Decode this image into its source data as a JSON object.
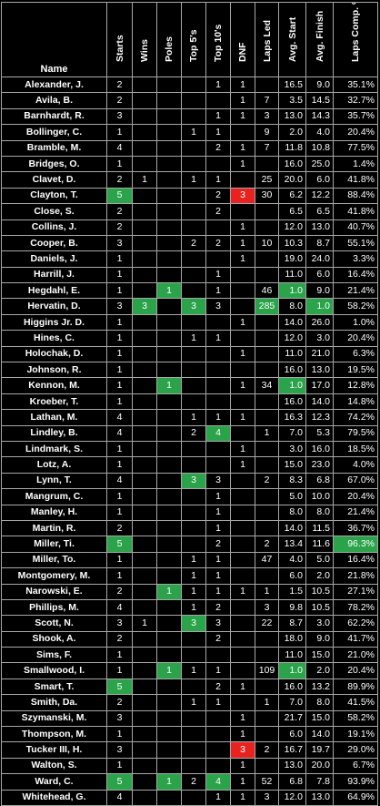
{
  "headers": [
    "Name",
    "Starts",
    "Wins",
    "Poles",
    "Top 5's",
    "Top 10's",
    "DNF",
    "Laps Led",
    "Avg. Start",
    "Avg. Finish",
    "Laps Comp. %"
  ],
  "colors": {
    "green": "#2aa34a",
    "red": "#e8231f",
    "background": "#000000",
    "border": "#a8a8a8"
  },
  "rows": [
    {
      "cells": [
        "Alexander, J.",
        "2",
        "",
        "",
        "",
        "1",
        "1",
        "",
        "16.5",
        "9.0",
        "35.1%"
      ],
      "hl": {}
    },
    {
      "cells": [
        "Avila, B.",
        "2",
        "",
        "",
        "",
        "",
        "1",
        "7",
        "3.5",
        "14.5",
        "32.7%"
      ],
      "hl": {}
    },
    {
      "cells": [
        "Barnhardt, R.",
        "3",
        "",
        "",
        "",
        "1",
        "1",
        "3",
        "13.0",
        "14.3",
        "35.7%"
      ],
      "hl": {}
    },
    {
      "cells": [
        "Bollinger, C.",
        "1",
        "",
        "",
        "1",
        "1",
        "",
        "9",
        "2.0",
        "4.0",
        "20.4%"
      ],
      "hl": {}
    },
    {
      "cells": [
        "Bramble, M.",
        "4",
        "",
        "",
        "",
        "2",
        "1",
        "7",
        "11.8",
        "10.8",
        "77.5%"
      ],
      "hl": {}
    },
    {
      "cells": [
        "Bridges, O.",
        "1",
        "",
        "",
        "",
        "",
        "1",
        "",
        "16.0",
        "25.0",
        "1.4%"
      ],
      "hl": {}
    },
    {
      "cells": [
        "Clavet, D.",
        "2",
        "1",
        "",
        "1",
        "1",
        "",
        "25",
        "20.0",
        "6.0",
        "41.8%"
      ],
      "hl": {}
    },
    {
      "cells": [
        "Clayton, T.",
        "5",
        "",
        "",
        "",
        "2",
        "3",
        "30",
        "6.2",
        "12.2",
        "88.4%"
      ],
      "hl": {
        "1": "green",
        "6": "red"
      }
    },
    {
      "cells": [
        "Close, S.",
        "2",
        "",
        "",
        "",
        "2",
        "",
        "",
        "6.5",
        "6.5",
        "41.8%"
      ],
      "hl": {}
    },
    {
      "cells": [
        "Collins, J.",
        "2",
        "",
        "",
        "",
        "",
        "1",
        "",
        "12.0",
        "13.0",
        "40.7%"
      ],
      "hl": {}
    },
    {
      "cells": [
        "Cooper, B.",
        "3",
        "",
        "",
        "2",
        "2",
        "1",
        "10",
        "10.3",
        "8.7",
        "55.1%"
      ],
      "hl": {}
    },
    {
      "cells": [
        "Daniels, J.",
        "1",
        "",
        "",
        "",
        "",
        "1",
        "",
        "19.0",
        "24.0",
        "3.3%"
      ],
      "hl": {}
    },
    {
      "cells": [
        "Harrill, J.",
        "1",
        "",
        "",
        "",
        "1",
        "",
        "",
        "11.0",
        "6.0",
        "16.4%"
      ],
      "hl": {}
    },
    {
      "cells": [
        "Hegdahl, E.",
        "1",
        "",
        "1",
        "",
        "1",
        "",
        "46",
        "1.0",
        "9.0",
        "21.4%"
      ],
      "hl": {
        "3": "green",
        "8": "green"
      }
    },
    {
      "cells": [
        "Hervatin, D.",
        "3",
        "3",
        "",
        "3",
        "3",
        "",
        "285",
        "8.0",
        "1.0",
        "58.2%"
      ],
      "hl": {
        "2": "green",
        "4": "green",
        "7": "green",
        "9": "green"
      }
    },
    {
      "cells": [
        "Higgins Jr. D.",
        "1",
        "",
        "",
        "",
        "",
        "1",
        "",
        "14.0",
        "26.0",
        "1.0%"
      ],
      "hl": {}
    },
    {
      "cells": [
        "Hines, C.",
        "1",
        "",
        "",
        "1",
        "1",
        "",
        "",
        "12.0",
        "3.0",
        "20.4%"
      ],
      "hl": {}
    },
    {
      "cells": [
        "Holochak, D.",
        "1",
        "",
        "",
        "",
        "",
        "1",
        "",
        "11.0",
        "21.0",
        "6.3%"
      ],
      "hl": {}
    },
    {
      "cells": [
        "Johnson, R.",
        "1",
        "",
        "",
        "",
        "",
        "",
        "",
        "16.0",
        "13.0",
        "19.5%"
      ],
      "hl": {}
    },
    {
      "cells": [
        "Kennon, M.",
        "1",
        "",
        "1",
        "",
        "",
        "1",
        "34",
        "1.0",
        "17.0",
        "12.8%"
      ],
      "hl": {
        "3": "green",
        "8": "green"
      }
    },
    {
      "cells": [
        "Kroeber, T.",
        "1",
        "",
        "",
        "",
        "",
        "",
        "",
        "16.0",
        "14.0",
        "14.8%"
      ],
      "hl": {}
    },
    {
      "cells": [
        "Lathan, M.",
        "4",
        "",
        "",
        "1",
        "1",
        "1",
        "",
        "16.3",
        "12.3",
        "74.2%"
      ],
      "hl": {}
    },
    {
      "cells": [
        "Lindley, B.",
        "4",
        "",
        "",
        "2",
        "4",
        "",
        "1",
        "7.0",
        "5.3",
        "79.5%"
      ],
      "hl": {
        "5": "green"
      }
    },
    {
      "cells": [
        "Lindmark, S.",
        "1",
        "",
        "",
        "",
        "",
        "1",
        "",
        "3.0",
        "16.0",
        "18.5%"
      ],
      "hl": {}
    },
    {
      "cells": [
        "Lotz, A.",
        "1",
        "",
        "",
        "",
        "",
        "1",
        "",
        "15.0",
        "23.0",
        "4.0%"
      ],
      "hl": {}
    },
    {
      "cells": [
        "Lynn, T.",
        "4",
        "",
        "",
        "3",
        "3",
        "",
        "2",
        "8.3",
        "6.8",
        "67.0%"
      ],
      "hl": {
        "4": "green"
      }
    },
    {
      "cells": [
        "Mangrum, C.",
        "1",
        "",
        "",
        "",
        "1",
        "",
        "",
        "5.0",
        "10.0",
        "20.4%"
      ],
      "hl": {}
    },
    {
      "cells": [
        "Manley, H.",
        "1",
        "",
        "",
        "",
        "1",
        "",
        "",
        "8.0",
        "8.0",
        "21.4%"
      ],
      "hl": {}
    },
    {
      "cells": [
        "Martin, R.",
        "2",
        "",
        "",
        "",
        "1",
        "",
        "",
        "14.0",
        "11.5",
        "36.7%"
      ],
      "hl": {}
    },
    {
      "cells": [
        "Miller, Ti.",
        "5",
        "",
        "",
        "",
        "2",
        "",
        "2",
        "13.4",
        "11.6",
        "96.3%"
      ],
      "hl": {
        "1": "green",
        "10": "green"
      }
    },
    {
      "cells": [
        "Miller, To.",
        "1",
        "",
        "",
        "1",
        "1",
        "",
        "47",
        "4.0",
        "5.0",
        "16.4%"
      ],
      "hl": {}
    },
    {
      "cells": [
        "Montgomery, M.",
        "1",
        "",
        "",
        "1",
        "1",
        "",
        "",
        "6.0",
        "2.0",
        "21.8%"
      ],
      "hl": {}
    },
    {
      "cells": [
        "Narowski, E.",
        "2",
        "",
        "1",
        "1",
        "1",
        "1",
        "1",
        "1.5",
        "10.5",
        "27.1%"
      ],
      "hl": {
        "3": "green"
      }
    },
    {
      "cells": [
        "Phillips, M.",
        "4",
        "",
        "",
        "1",
        "2",
        "",
        "3",
        "9.8",
        "10.5",
        "78.2%"
      ],
      "hl": {}
    },
    {
      "cells": [
        "Scott, N.",
        "3",
        "1",
        "",
        "3",
        "3",
        "",
        "22",
        "8.7",
        "3.0",
        "62.2%"
      ],
      "hl": {
        "4": "green"
      }
    },
    {
      "cells": [
        "Shook, A.",
        "2",
        "",
        "",
        "",
        "2",
        "",
        "",
        "18.0",
        "9.0",
        "41.7%"
      ],
      "hl": {}
    },
    {
      "cells": [
        "Sims, F.",
        "1",
        "",
        "",
        "",
        "",
        "",
        "",
        "11.0",
        "15.0",
        "21.0%"
      ],
      "hl": {}
    },
    {
      "cells": [
        "Smallwood, I.",
        "1",
        "",
        "1",
        "1",
        "1",
        "",
        "109",
        "1.0",
        "2.0",
        "20.4%"
      ],
      "hl": {
        "3": "green",
        "8": "green"
      }
    },
    {
      "cells": [
        "Smart, T.",
        "5",
        "",
        "",
        "",
        "2",
        "1",
        "",
        "16.0",
        "13.2",
        "89.9%"
      ],
      "hl": {
        "1": "green"
      }
    },
    {
      "cells": [
        "Smith, Da.",
        "2",
        "",
        "",
        "1",
        "1",
        "",
        "1",
        "7.0",
        "8.0",
        "41.5%"
      ],
      "hl": {}
    },
    {
      "cells": [
        "Szymanski, M.",
        "3",
        "",
        "",
        "",
        "",
        "1",
        "",
        "21.7",
        "15.0",
        "58.2%"
      ],
      "hl": {}
    },
    {
      "cells": [
        "Thompson, M.",
        "1",
        "",
        "",
        "",
        "",
        "1",
        "",
        "6.0",
        "14.0",
        "19.1%"
      ],
      "hl": {}
    },
    {
      "cells": [
        "Tucker III, H.",
        "3",
        "",
        "",
        "",
        "",
        "3",
        "2",
        "16.7",
        "19.7",
        "29.0%"
      ],
      "hl": {
        "6": "red"
      }
    },
    {
      "cells": [
        "Walton, S.",
        "1",
        "",
        "",
        "",
        "",
        "1",
        "",
        "13.0",
        "20.0",
        "6.7%"
      ],
      "hl": {}
    },
    {
      "cells": [
        "Ward, C.",
        "5",
        "",
        "1",
        "2",
        "4",
        "1",
        "52",
        "6.8",
        "7.8",
        "93.9%"
      ],
      "hl": {
        "1": "green",
        "3": "green",
        "5": "green"
      }
    },
    {
      "cells": [
        "Whitehead, G.",
        "4",
        "",
        "",
        "",
        "1",
        "1",
        "3",
        "12.0",
        "13.0",
        "64.9%"
      ],
      "hl": {}
    }
  ]
}
